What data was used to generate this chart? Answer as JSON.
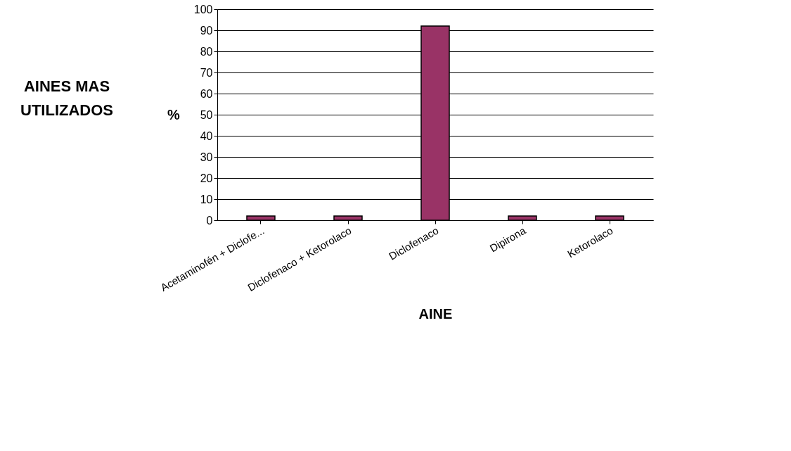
{
  "chart_data": {
    "type": "bar",
    "title": "AINES MAS UTILIZADOS",
    "xlabel": "AINE",
    "ylabel": "%",
    "categories": [
      "Acetaminofén + Diclofe...",
      "Diclofenaco + Ketorolaco",
      "Diclofenaco",
      "Dipirona",
      "Ketorolaco"
    ],
    "values": [
      2,
      2,
      92,
      2,
      2
    ],
    "color": "#993366",
    "ylim": [
      0,
      100
    ],
    "yticks": [
      0,
      10,
      20,
      30,
      40,
      50,
      60,
      70,
      80,
      90,
      100
    ],
    "grid": "y"
  }
}
